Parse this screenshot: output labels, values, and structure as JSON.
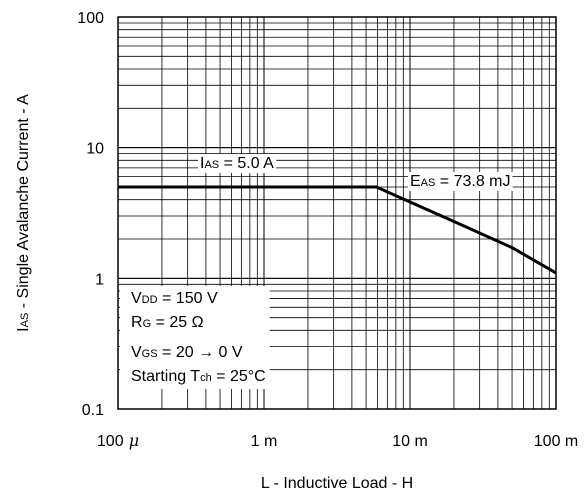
{
  "chart_data": {
    "type": "line",
    "scale": {
      "x": "log",
      "y": "log"
    },
    "xlim": [
      0.0001,
      0.1
    ],
    "ylim": [
      0.1,
      100
    ],
    "grid": true,
    "xlabel": "L - Inductive Load - H",
    "ylabel_parts": {
      "main": "I",
      "sub": "AS",
      "rest": " - Single Avalanche Current - A"
    },
    "x_ticks": [
      {
        "value": 0.0001,
        "label": "100",
        "mu": "μ"
      },
      {
        "value": 0.001,
        "label": "1 m"
      },
      {
        "value": 0.01,
        "label": "10 m"
      },
      {
        "value": 0.1,
        "label": "100 m"
      }
    ],
    "y_ticks": [
      {
        "value": 0.1,
        "label": "0.1"
      },
      {
        "value": 1,
        "label": "1"
      },
      {
        "value": 10,
        "label": "10"
      },
      {
        "value": 100,
        "label": "100"
      }
    ],
    "series": [
      {
        "x": [
          0.0001,
          0.0059,
          0.01,
          0.02,
          0.05,
          0.1
        ],
        "y": [
          5.0,
          5.0,
          3.84,
          2.72,
          1.72,
          1.1
        ]
      }
    ],
    "annotations": {
      "ias": {
        "pre": "I",
        "sub": "AS",
        "post": " = 5.0 A"
      },
      "eas": {
        "pre": "E",
        "sub": "AS",
        "post": " = 73.8 mJ"
      },
      "conditions": [
        {
          "pre": "V",
          "sub": "DD",
          "post": " = 150 V"
        },
        {
          "pre": "R",
          "sub": "G",
          "post": " = 25 Ω"
        },
        {
          "pre": "V",
          "sub": "GS",
          "post": " = 20 → 0 V"
        },
        {
          "pre": "Starting T",
          "sub": "ch",
          "post": " = 25°C"
        }
      ]
    }
  }
}
